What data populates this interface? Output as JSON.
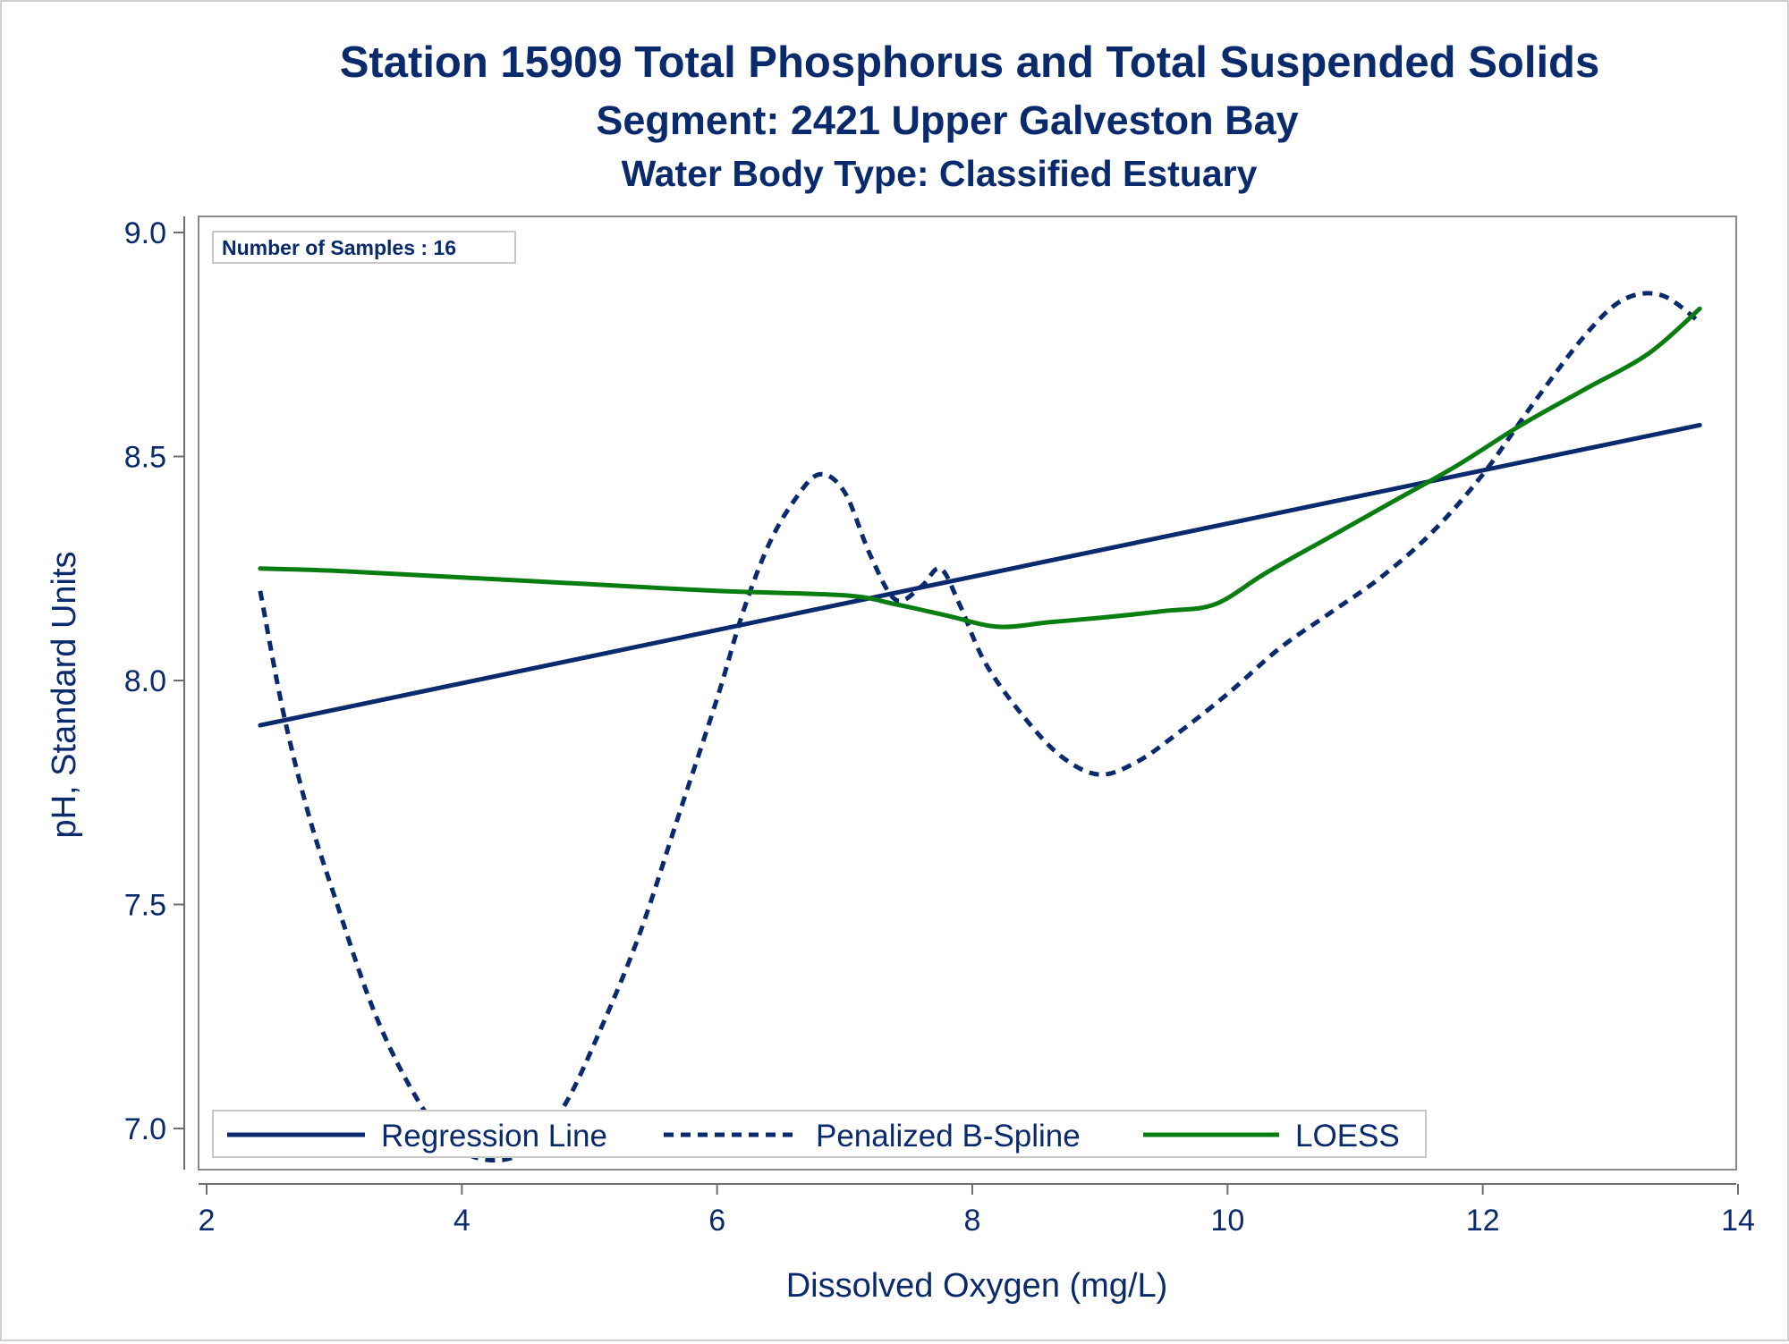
{
  "chart_data": {
    "type": "line",
    "title": "Station 15909  Total Phosphorus and Total Suspended Solids",
    "subtitle": "Segment: 2421  Upper Galveston Bay",
    "subtitle2": "Water Body Type: Classified Estuary",
    "xlabel": "Dissolved Oxygen (mg/L)",
    "ylabel": "pH, Standard Units",
    "xlim": [
      2,
      14
    ],
    "ylim": [
      6.92,
      9.03
    ],
    "x_ticks": [
      2,
      4,
      6,
      8,
      10,
      12,
      14
    ],
    "y_ticks": [
      7.0,
      7.5,
      8.0,
      8.5,
      9.0
    ],
    "x_tick_labels": [
      "2",
      "4",
      "6",
      "8",
      "10",
      "12",
      "14"
    ],
    "y_tick_labels": [
      "7.0",
      "7.5",
      "8.0",
      "8.5",
      "9.0"
    ],
    "inset_label": "Number of Samples : 16",
    "legend_position": "bottom-left inside",
    "grid": false,
    "series": [
      {
        "name": "Regression Line",
        "color": "#0a2a6e",
        "style": "solid",
        "x": [
          2.42,
          13.7
        ],
        "y": [
          7.9,
          8.57
        ]
      },
      {
        "name": "Penalized B-Spline",
        "color": "#0a2a6e",
        "style": "dashed",
        "x": [
          2.42,
          2.6,
          2.8,
          3.0,
          3.3,
          3.6,
          3.9,
          4.2,
          4.5,
          4.8,
          5.1,
          5.4,
          5.7,
          6.0,
          6.2,
          6.4,
          6.6,
          6.8,
          7.0,
          7.2,
          7.4,
          7.6,
          7.75,
          7.9,
          8.1,
          8.4,
          8.7,
          9.0,
          9.3,
          9.6,
          10.0,
          10.4,
          10.8,
          11.2,
          11.6,
          12.0,
          12.4,
          12.8,
          13.1,
          13.4,
          13.7
        ],
        "y": [
          8.2,
          7.93,
          7.7,
          7.52,
          7.27,
          7.09,
          6.97,
          6.93,
          6.95,
          7.05,
          7.23,
          7.44,
          7.7,
          7.96,
          8.15,
          8.3,
          8.4,
          8.46,
          8.42,
          8.28,
          8.18,
          8.21,
          8.25,
          8.17,
          8.04,
          7.92,
          7.83,
          7.79,
          7.82,
          7.88,
          7.97,
          8.07,
          8.15,
          8.23,
          8.33,
          8.46,
          8.62,
          8.77,
          8.85,
          8.86,
          8.8
        ]
      },
      {
        "name": "LOESS",
        "color": "#0a7d10",
        "style": "solid",
        "x": [
          2.42,
          3.0,
          4.0,
          5.0,
          6.0,
          7.0,
          7.4,
          7.8,
          8.2,
          8.6,
          9.0,
          9.5,
          9.9,
          10.3,
          10.8,
          11.3,
          11.8,
          12.3,
          12.8,
          13.3,
          13.7
        ],
        "y": [
          8.25,
          8.245,
          8.23,
          8.215,
          8.2,
          8.19,
          8.17,
          8.145,
          8.12,
          8.13,
          8.14,
          8.155,
          8.17,
          8.24,
          8.32,
          8.4,
          8.48,
          8.57,
          8.65,
          8.73,
          8.83
        ]
      }
    ]
  }
}
